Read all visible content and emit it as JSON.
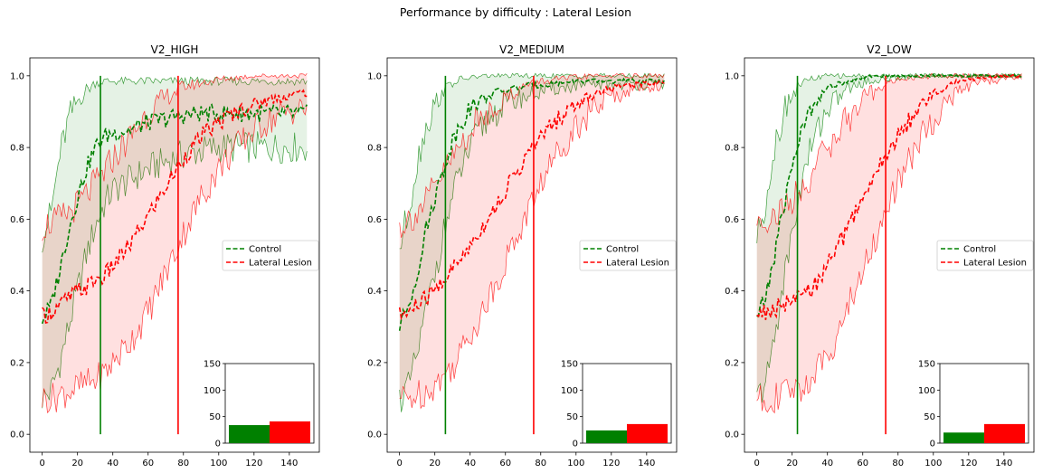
{
  "figure": {
    "suptitle": "Performance by difficulty : Lateral Lesion"
  },
  "colors": {
    "control": "#008000",
    "lesion": "#ff0000"
  },
  "legend": {
    "control": "Control",
    "lesion": "Lateral Lesion"
  },
  "chart_data": [
    {
      "type": "line",
      "title": "V2_HIGH",
      "xlabel": "",
      "ylabel": "",
      "xlim": [
        -7,
        157
      ],
      "ylim": [
        -0.05,
        1.05
      ],
      "xticks": [
        0,
        20,
        40,
        60,
        80,
        100,
        120,
        140
      ],
      "yticks": [
        0.0,
        0.2,
        0.4,
        0.6,
        0.8,
        1.0
      ],
      "grid": false,
      "legend_position": "center-right",
      "series": [
        {
          "name": "Control",
          "style": "dashed",
          "x": [
            0,
            5,
            10,
            15,
            20,
            25,
            30,
            35,
            40,
            50,
            60,
            70,
            80,
            90,
            100,
            110,
            120,
            130,
            140,
            150
          ],
          "mean": [
            0.32,
            0.36,
            0.46,
            0.57,
            0.66,
            0.74,
            0.8,
            0.83,
            0.84,
            0.85,
            0.87,
            0.88,
            0.89,
            0.895,
            0.895,
            0.895,
            0.895,
            0.895,
            0.895,
            0.895
          ],
          "lower": [
            0.1,
            0.12,
            0.2,
            0.3,
            0.4,
            0.5,
            0.58,
            0.64,
            0.68,
            0.71,
            0.74,
            0.76,
            0.78,
            0.79,
            0.8,
            0.8,
            0.8,
            0.8,
            0.8,
            0.8
          ],
          "upper": [
            0.55,
            0.62,
            0.78,
            0.88,
            0.93,
            0.96,
            0.98,
            0.985,
            0.985,
            0.985,
            0.985,
            0.985,
            0.985,
            0.985,
            0.985,
            0.985,
            0.985,
            0.985,
            0.985,
            0.985
          ]
        },
        {
          "name": "Lateral Lesion",
          "style": "dashed",
          "x": [
            0,
            5,
            10,
            15,
            20,
            25,
            30,
            35,
            40,
            50,
            60,
            70,
            80,
            90,
            100,
            110,
            120,
            130,
            140,
            150
          ],
          "mean": [
            0.33,
            0.34,
            0.36,
            0.38,
            0.4,
            0.41,
            0.43,
            0.44,
            0.47,
            0.53,
            0.61,
            0.69,
            0.77,
            0.83,
            0.87,
            0.9,
            0.92,
            0.935,
            0.945,
            0.955
          ],
          "lower": [
            0.1,
            0.1,
            0.11,
            0.12,
            0.13,
            0.14,
            0.15,
            0.17,
            0.2,
            0.26,
            0.34,
            0.45,
            0.56,
            0.66,
            0.74,
            0.8,
            0.85,
            0.88,
            0.9,
            0.91
          ],
          "upper": [
            0.58,
            0.59,
            0.6,
            0.62,
            0.64,
            0.67,
            0.7,
            0.73,
            0.77,
            0.83,
            0.9,
            0.94,
            0.97,
            0.98,
            0.99,
            0.995,
            1.0,
            1.0,
            1.0,
            1.0
          ]
        }
      ],
      "vlines": [
        {
          "series": "Control",
          "x": 33
        },
        {
          "series": "Lateral Lesion",
          "x": 77
        }
      ],
      "inset": {
        "type": "bar",
        "ylim": [
          0,
          150
        ],
        "yticks": [
          0,
          50,
          100,
          150
        ],
        "values": [
          34,
          41
        ]
      }
    },
    {
      "type": "line",
      "title": "V2_MEDIUM",
      "xlabel": "",
      "ylabel": "",
      "xlim": [
        -7,
        157
      ],
      "ylim": [
        -0.05,
        1.05
      ],
      "xticks": [
        0,
        20,
        40,
        60,
        80,
        100,
        120,
        140
      ],
      "yticks": [
        0.0,
        0.2,
        0.4,
        0.6,
        0.8,
        1.0
      ],
      "grid": false,
      "legend_position": "center-right",
      "series": [
        {
          "name": "Control",
          "style": "dashed",
          "x": [
            0,
            5,
            10,
            15,
            20,
            25,
            30,
            35,
            40,
            50,
            60,
            70,
            80,
            90,
            100,
            110,
            120,
            130,
            140,
            150
          ],
          "mean": [
            0.3,
            0.36,
            0.45,
            0.57,
            0.66,
            0.74,
            0.82,
            0.87,
            0.91,
            0.945,
            0.96,
            0.97,
            0.975,
            0.98,
            0.985,
            0.985,
            0.985,
            0.985,
            0.985,
            0.985
          ],
          "lower": [
            0.1,
            0.13,
            0.22,
            0.34,
            0.45,
            0.56,
            0.66,
            0.74,
            0.8,
            0.88,
            0.92,
            0.94,
            0.955,
            0.965,
            0.97,
            0.975,
            0.975,
            0.975,
            0.975,
            0.975
          ],
          "upper": [
            0.52,
            0.62,
            0.76,
            0.86,
            0.92,
            0.96,
            0.98,
            0.99,
            0.995,
            1.0,
            1.0,
            1.0,
            1.0,
            1.0,
            1.0,
            1.0,
            1.0,
            1.0,
            1.0,
            1.0
          ]
        },
        {
          "name": "Lateral Lesion",
          "style": "dashed",
          "x": [
            0,
            5,
            10,
            15,
            20,
            25,
            30,
            35,
            40,
            50,
            60,
            70,
            80,
            90,
            100,
            110,
            120,
            130,
            140,
            150
          ],
          "mean": [
            0.33,
            0.34,
            0.36,
            0.38,
            0.4,
            0.43,
            0.46,
            0.49,
            0.53,
            0.6,
            0.68,
            0.76,
            0.83,
            0.88,
            0.92,
            0.95,
            0.965,
            0.975,
            0.98,
            0.985
          ],
          "lower": [
            0.1,
            0.1,
            0.11,
            0.12,
            0.14,
            0.16,
            0.19,
            0.23,
            0.28,
            0.37,
            0.48,
            0.59,
            0.7,
            0.79,
            0.86,
            0.91,
            0.94,
            0.96,
            0.97,
            0.975
          ],
          "upper": [
            0.58,
            0.6,
            0.62,
            0.65,
            0.69,
            0.73,
            0.77,
            0.81,
            0.85,
            0.9,
            0.94,
            0.97,
            0.985,
            0.99,
            0.995,
            1.0,
            1.0,
            1.0,
            1.0,
            1.0
          ]
        }
      ],
      "vlines": [
        {
          "series": "Control",
          "x": 26
        },
        {
          "series": "Lateral Lesion",
          "x": 76
        }
      ],
      "inset": {
        "type": "bar",
        "ylim": [
          0,
          150
        ],
        "yticks": [
          0,
          50,
          100,
          150
        ],
        "values": [
          24,
          36
        ]
      }
    },
    {
      "type": "line",
      "title": "V2_LOW",
      "xlabel": "",
      "ylabel": "",
      "xlim": [
        -7,
        157
      ],
      "ylim": [
        -0.05,
        1.05
      ],
      "xticks": [
        0,
        20,
        40,
        60,
        80,
        100,
        120,
        140
      ],
      "yticks": [
        0.0,
        0.2,
        0.4,
        0.6,
        0.8,
        1.0
      ],
      "grid": false,
      "legend_position": "center-right",
      "series": [
        {
          "name": "Control",
          "style": "dashed",
          "x": [
            0,
            5,
            10,
            15,
            20,
            25,
            30,
            35,
            40,
            50,
            60,
            70,
            80,
            90,
            100,
            110,
            120,
            130,
            140,
            150
          ],
          "mean": [
            0.33,
            0.38,
            0.5,
            0.63,
            0.75,
            0.84,
            0.9,
            0.94,
            0.965,
            0.985,
            0.995,
            1.0,
            1.0,
            1.0,
            1.0,
            1.0,
            1.0,
            1.0,
            1.0,
            1.0
          ],
          "lower": [
            0.1,
            0.14,
            0.27,
            0.42,
            0.56,
            0.69,
            0.79,
            0.86,
            0.91,
            0.96,
            0.98,
            0.99,
            0.995,
            1.0,
            1.0,
            1.0,
            1.0,
            1.0,
            1.0,
            1.0
          ],
          "upper": [
            0.55,
            0.65,
            0.8,
            0.9,
            0.95,
            0.98,
            0.99,
            0.995,
            1.0,
            1.0,
            1.0,
            1.0,
            1.0,
            1.0,
            1.0,
            1.0,
            1.0,
            1.0,
            1.0,
            1.0
          ]
        },
        {
          "name": "Lateral Lesion",
          "style": "dashed",
          "x": [
            0,
            5,
            10,
            15,
            20,
            25,
            30,
            35,
            40,
            50,
            60,
            70,
            80,
            90,
            100,
            110,
            120,
            130,
            140,
            150
          ],
          "mean": [
            0.34,
            0.34,
            0.35,
            0.36,
            0.37,
            0.38,
            0.4,
            0.43,
            0.47,
            0.56,
            0.66,
            0.75,
            0.83,
            0.9,
            0.95,
            0.98,
            0.99,
            0.995,
            1.0,
            1.0
          ],
          "lower": [
            0.1,
            0.1,
            0.1,
            0.11,
            0.12,
            0.13,
            0.15,
            0.18,
            0.22,
            0.33,
            0.46,
            0.58,
            0.7,
            0.8,
            0.88,
            0.94,
            0.97,
            0.985,
            0.99,
            0.995
          ],
          "upper": [
            0.6,
            0.6,
            0.61,
            0.63,
            0.65,
            0.68,
            0.72,
            0.76,
            0.8,
            0.87,
            0.93,
            0.97,
            0.99,
            0.995,
            1.0,
            1.0,
            1.0,
            1.0,
            1.0,
            1.0
          ]
        }
      ],
      "vlines": [
        {
          "series": "Control",
          "x": 23
        },
        {
          "series": "Lateral Lesion",
          "x": 73
        }
      ],
      "inset": {
        "type": "bar",
        "ylim": [
          0,
          150
        ],
        "yticks": [
          0,
          50,
          100,
          150
        ],
        "values": [
          20,
          36
        ]
      }
    }
  ]
}
